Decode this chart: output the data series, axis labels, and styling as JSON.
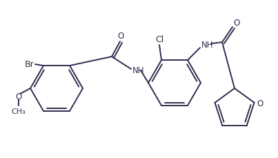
{
  "bg_color": "#ffffff",
  "line_color": "#2d2d4e",
  "line_width": 1.4,
  "font_size": 8.5,
  "fig_width": 4.03,
  "fig_height": 2.29,
  "dpi": 100,
  "xlim": [
    0,
    403
  ],
  "ylim": [
    0,
    229
  ]
}
